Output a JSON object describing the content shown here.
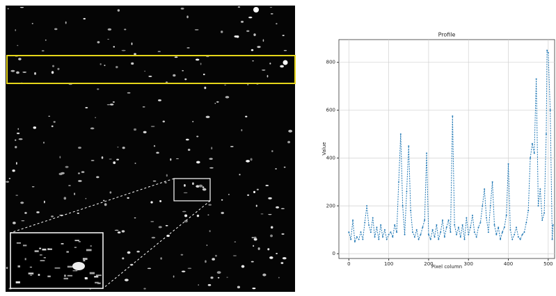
{
  "chart_data": {
    "type": "line",
    "title": "Profile",
    "x_label": "Pixel column",
    "y_label": "Value",
    "x": [
      0,
      5,
      10,
      15,
      20,
      25,
      30,
      35,
      40,
      45,
      50,
      55,
      60,
      65,
      70,
      75,
      80,
      85,
      90,
      95,
      100,
      105,
      110,
      115,
      120,
      125,
      130,
      135,
      140,
      145,
      150,
      155,
      160,
      165,
      170,
      175,
      180,
      185,
      190,
      195,
      200,
      205,
      210,
      215,
      220,
      225,
      230,
      235,
      240,
      245,
      250,
      255,
      260,
      265,
      270,
      275,
      280,
      285,
      290,
      295,
      300,
      305,
      310,
      315,
      320,
      325,
      330,
      335,
      340,
      345,
      350,
      355,
      360,
      365,
      370,
      375,
      380,
      385,
      390,
      395,
      400,
      405,
      410,
      415,
      420,
      425,
      430,
      435,
      440,
      445,
      450,
      455,
      460,
      465,
      470,
      475,
      480,
      485,
      490,
      495,
      497,
      500,
      505,
      510,
      512
    ],
    "values": [
      90,
      60,
      140,
      50,
      70,
      60,
      90,
      60,
      130,
      200,
      120,
      90,
      150,
      70,
      110,
      60,
      120,
      70,
      100,
      60,
      80,
      90,
      70,
      120,
      90,
      300,
      500,
      200,
      80,
      260,
      450,
      180,
      90,
      70,
      100,
      60,
      80,
      110,
      140,
      420,
      80,
      60,
      100,
      70,
      120,
      60,
      90,
      140,
      70,
      110,
      140,
      90,
      575,
      120,
      80,
      110,
      70,
      120,
      60,
      150,
      80,
      110,
      160,
      90,
      70,
      110,
      130,
      200,
      270,
      150,
      90,
      200,
      300,
      120,
      80,
      110,
      60,
      90,
      110,
      160,
      375,
      100,
      60,
      80,
      110,
      70,
      60,
      80,
      90,
      130,
      180,
      400,
      460,
      420,
      730,
      200,
      270,
      140,
      170,
      500,
      850,
      840,
      600,
      60,
      120
    ],
    "color": "#1f77b4",
    "xlim": [
      -25,
      516
    ],
    "xticks": [
      0,
      100,
      200,
      300,
      400,
      500
    ],
    "ylim": [
      -20,
      895
    ],
    "yticks": [
      0,
      200,
      400,
      600,
      800
    ],
    "grid": true
  }
}
